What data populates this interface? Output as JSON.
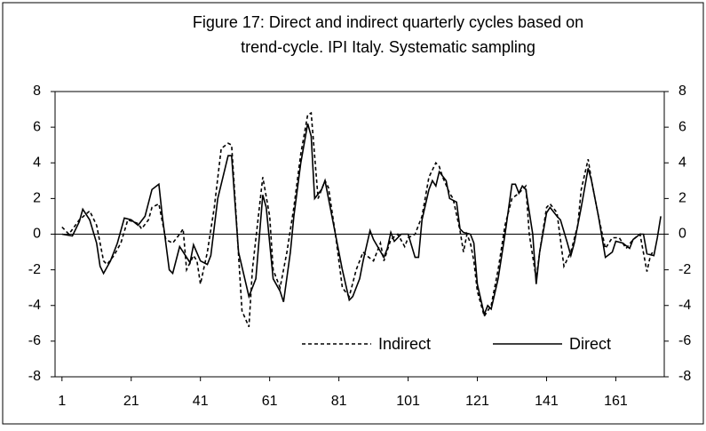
{
  "chart_data": {
    "type": "line",
    "title_lines": [
      "Figure 17: Direct and indirect quarterly cycles based on",
      "trend-cycle. IPI Italy. Systematic sampling"
    ],
    "xlim": [
      -1,
      175
    ],
    "xticks": [
      1,
      21,
      41,
      61,
      81,
      101,
      121,
      141,
      161
    ],
    "ylim": [
      -8,
      8
    ],
    "yticks": [
      -8,
      -6,
      -4,
      -2,
      0,
      2,
      4,
      6,
      8
    ],
    "y2lim": [
      -8,
      8
    ],
    "y2ticks": [
      -8,
      -6,
      -4,
      -2,
      0,
      2,
      4,
      6,
      8
    ],
    "series": [
      {
        "name": "Indirect",
        "color": "#000000",
        "dash": "4,3",
        "x": [
          1,
          3,
          6,
          9,
          11,
          13,
          14,
          16,
          18,
          20,
          23,
          24,
          26,
          27,
          29,
          31,
          33,
          35,
          36,
          37,
          39,
          40,
          41,
          43,
          45,
          47,
          49,
          50,
          51,
          53,
          55,
          56,
          59,
          61,
          62,
          64,
          66,
          68,
          70,
          72,
          73,
          75,
          77,
          78,
          80,
          82,
          84,
          86,
          88,
          89,
          91,
          93,
          94,
          96,
          98,
          100,
          101,
          103,
          105,
          107,
          109,
          110,
          111,
          113,
          114,
          116,
          117,
          118,
          119,
          120,
          121,
          123,
          125,
          127,
          129,
          131,
          133,
          135,
          136,
          138,
          139,
          141,
          142,
          144,
          146,
          148,
          150,
          151,
          153,
          154,
          156,
          158,
          160,
          162,
          164,
          166,
          168,
          170,
          171,
          172
        ],
        "values": [
          0.4,
          0,
          0.8,
          1.3,
          0.5,
          -1.5,
          -1.7,
          -1.2,
          -0.5,
          0.8,
          0.6,
          0.3,
          0.8,
          1.5,
          1.7,
          -0.3,
          -0.5,
          0,
          0.3,
          -2,
          -1.2,
          -1.5,
          -2.8,
          -1,
          1.5,
          4.8,
          5.1,
          5,
          2,
          -4.3,
          -5.2,
          -2,
          3.2,
          1,
          -2,
          -3,
          -1,
          1.5,
          4.5,
          6.7,
          6.8,
          2,
          3,
          2.6,
          0,
          -3,
          -3.5,
          -2,
          -1,
          -1.2,
          -1.5,
          -0.5,
          -1.5,
          -0.3,
          0,
          -0.7,
          -0.2,
          0,
          1,
          3.2,
          4,
          3.8,
          3.2,
          2.3,
          2,
          0.2,
          -1,
          0,
          -0.5,
          -1.5,
          -3.2,
          -4.6,
          -4,
          -2,
          0.5,
          2,
          2.3,
          2.7,
          0,
          -2.5,
          -1,
          1.5,
          1.7,
          1.2,
          -1.8,
          -1,
          0.5,
          2.5,
          4.2,
          3,
          1,
          -0.8,
          -0.2,
          -0.2,
          -0.8,
          -0.3,
          0,
          -2.1,
          -1.2,
          -0.9
        ]
      },
      {
        "name": "Direct",
        "color": "#000000",
        "dash": null,
        "x": [
          1,
          4,
          6,
          7,
          9,
          11,
          12,
          13,
          15,
          17,
          19,
          21,
          23,
          25,
          27,
          29,
          30,
          32,
          33,
          35,
          38,
          39,
          41,
          43,
          44,
          46,
          49,
          50,
          52,
          55,
          57,
          59,
          60,
          62,
          64,
          65,
          67,
          68,
          70,
          72,
          73,
          74,
          76,
          77,
          78,
          80,
          82,
          84,
          85,
          87,
          88,
          90,
          91,
          94,
          95,
          96,
          97,
          99,
          101,
          103,
          104,
          105,
          107,
          108,
          109,
          110,
          112,
          113,
          115,
          116,
          117,
          119,
          120,
          121,
          123,
          124,
          125,
          127,
          129,
          131,
          132,
          133,
          134,
          135,
          137,
          138,
          139,
          141,
          142,
          144,
          145,
          147,
          148,
          149,
          151,
          153,
          154,
          156,
          158,
          160,
          161,
          163,
          165,
          166,
          168,
          169,
          170,
          172,
          173,
          174
        ],
        "values": [
          0,
          -0.1,
          0.7,
          1.4,
          0.8,
          -0.5,
          -1.8,
          -2.2,
          -1.5,
          -0.5,
          0.9,
          0.8,
          0.5,
          1,
          2.5,
          2.8,
          1,
          -2,
          -2.2,
          -0.7,
          -1.6,
          -0.6,
          -1.5,
          -1.7,
          -1.2,
          2,
          4.4,
          4.4,
          -1,
          -3.5,
          -2.5,
          2.2,
          1.5,
          -2.5,
          -3.2,
          -3.8,
          -1,
          1,
          4,
          6.2,
          5.5,
          2,
          2.5,
          3,
          2,
          0,
          -2,
          -3.7,
          -3.5,
          -2.5,
          -1.5,
          0.2,
          -0.3,
          -1.3,
          -0.8,
          0.1,
          -0.4,
          0,
          0,
          -1.3,
          -1.3,
          0.8,
          2.5,
          3,
          2.7,
          3.5,
          3,
          2,
          1.8,
          0.3,
          0.1,
          0,
          -0.5,
          -2.8,
          -4.5,
          -4,
          -4.2,
          -2.5,
          0,
          2.8,
          2.8,
          2.3,
          2.7,
          2.5,
          0,
          -2.8,
          -1,
          1.2,
          1.5,
          1,
          0.8,
          -0.5,
          -1.2,
          -0.5,
          1.5,
          3.7,
          3,
          1,
          -1.3,
          -1,
          -0.4,
          -0.5,
          -0.8,
          -0.3,
          0,
          0,
          -1.1,
          -1.2,
          -0.2,
          1
        ]
      }
    ]
  }
}
